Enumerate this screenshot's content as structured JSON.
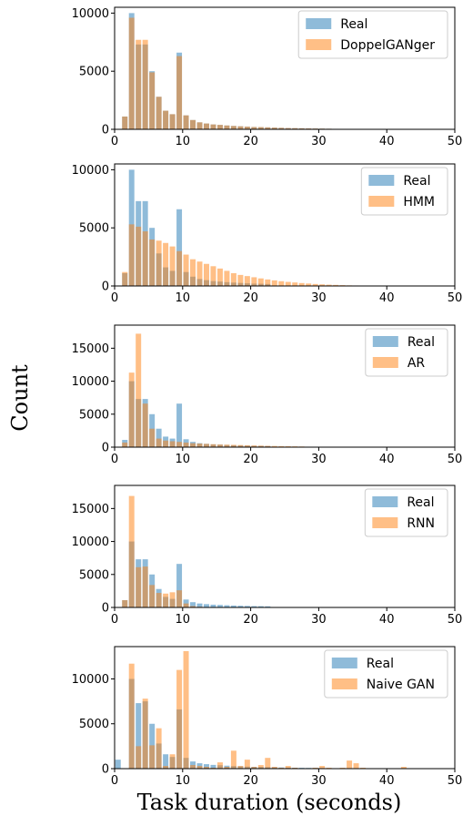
{
  "figure": {
    "ylabel": "Count",
    "xlabel": "Task duration (seconds)"
  },
  "colors": {
    "real": "#1f77b4",
    "generated": "#ff7f0e",
    "bar_opacity": 0.5
  },
  "chart_data": [
    {
      "type": "bar",
      "xlim": [
        0,
        50
      ],
      "ylim": [
        0,
        10500
      ],
      "xticks": [
        0,
        10,
        20,
        30,
        40,
        50
      ],
      "yticks": [
        0,
        5000,
        10000
      ],
      "legend_position": "top-right",
      "series": [
        {
          "name": "Real",
          "x": [
            0.5,
            1.5,
            2.5,
            3.5,
            4.5,
            5.5,
            6.5,
            7.5,
            8.5,
            9.5,
            10.5,
            11.5,
            12.5,
            13.5,
            14.5,
            15.5,
            16.5,
            17.5,
            18.5,
            19.5,
            20.5,
            21.5,
            22.5,
            23.5,
            24.5,
            25.5,
            26.5,
            27.5,
            28.5,
            29.5,
            30.5,
            31.5,
            32.5
          ],
          "values": [
            0,
            1100,
            10000,
            7300,
            7300,
            5000,
            2800,
            1600,
            1300,
            6600,
            1200,
            800,
            600,
            500,
            420,
            380,
            330,
            290,
            260,
            230,
            200,
            190,
            170,
            150,
            130,
            110,
            100,
            90,
            80,
            70,
            60,
            50,
            40
          ]
        },
        {
          "name": "DoppelGANger",
          "x": [
            0.5,
            1.5,
            2.5,
            3.5,
            4.5,
            5.5,
            6.5,
            7.5,
            8.5,
            9.5,
            10.5,
            11.5,
            12.5,
            13.5,
            14.5,
            15.5,
            16.5,
            17.5,
            18.5,
            19.5,
            20.5,
            21.5,
            22.5,
            23.5,
            24.5,
            25.5,
            26.5,
            27.5,
            28.5,
            29.5,
            30.5,
            31.5,
            32.5
          ],
          "values": [
            0,
            1100,
            9600,
            7700,
            7700,
            4900,
            2800,
            1600,
            1300,
            6300,
            1200,
            800,
            600,
            500,
            420,
            380,
            330,
            290,
            260,
            230,
            200,
            190,
            170,
            150,
            130,
            110,
            100,
            90,
            80,
            70,
            60,
            50,
            40
          ]
        }
      ]
    },
    {
      "type": "bar",
      "xlim": [
        0,
        50
      ],
      "ylim": [
        0,
        10500
      ],
      "xticks": [
        0,
        10,
        20,
        30,
        40,
        50
      ],
      "yticks": [
        0,
        5000,
        10000
      ],
      "legend_position": "top-right",
      "series": [
        {
          "name": "Real",
          "x": [
            0.5,
            1.5,
            2.5,
            3.5,
            4.5,
            5.5,
            6.5,
            7.5,
            8.5,
            9.5,
            10.5,
            11.5,
            12.5,
            13.5,
            14.5,
            15.5,
            16.5,
            17.5,
            18.5,
            19.5,
            20.5,
            21.5,
            22.5
          ],
          "values": [
            0,
            1100,
            10000,
            7300,
            7300,
            5000,
            2800,
            1600,
            1300,
            6600,
            1200,
            800,
            600,
            500,
            420,
            380,
            330,
            290,
            260,
            230,
            200,
            190,
            170
          ]
        },
        {
          "name": "HMM",
          "x": [
            0.5,
            1.5,
            2.5,
            3.5,
            4.5,
            5.5,
            6.5,
            7.5,
            8.5,
            9.5,
            10.5,
            11.5,
            12.5,
            13.5,
            14.5,
            15.5,
            16.5,
            17.5,
            18.5,
            19.5,
            20.5,
            21.5,
            22.5,
            23.5,
            24.5,
            25.5,
            26.5,
            27.5,
            28.5,
            29.5,
            30.5,
            31.5,
            32.5,
            33.5,
            34.5,
            35.5,
            36.5
          ],
          "values": [
            0,
            1200,
            5300,
            5100,
            4700,
            4000,
            3900,
            3700,
            3400,
            3000,
            2700,
            2300,
            2100,
            1900,
            1700,
            1500,
            1300,
            1100,
            950,
            850,
            750,
            650,
            560,
            480,
            410,
            350,
            300,
            250,
            210,
            170,
            140,
            110,
            90,
            70,
            50,
            40,
            30
          ]
        }
      ]
    },
    {
      "type": "bar",
      "xlim": [
        0,
        50
      ],
      "ylim": [
        0,
        18500
      ],
      "xticks": [
        0,
        10,
        20,
        30,
        40,
        50
      ],
      "yticks": [
        0,
        5000,
        10000,
        15000
      ],
      "legend_position": "top-right",
      "series": [
        {
          "name": "Real",
          "x": [
            0.5,
            1.5,
            2.5,
            3.5,
            4.5,
            5.5,
            6.5,
            7.5,
            8.5,
            9.5,
            10.5,
            11.5,
            12.5,
            13.5,
            14.5,
            15.5,
            16.5,
            17.5,
            18.5,
            19.5,
            20.5,
            21.5,
            22.5
          ],
          "values": [
            0,
            1100,
            10000,
            7300,
            7300,
            5000,
            2800,
            1600,
            1300,
            6600,
            1200,
            800,
            600,
            500,
            420,
            380,
            330,
            290,
            260,
            230,
            200,
            190,
            170
          ]
        },
        {
          "name": "AR",
          "x": [
            0.5,
            1.5,
            2.5,
            3.5,
            4.5,
            5.5,
            6.5,
            7.5,
            8.5,
            9.5,
            10.5,
            11.5,
            12.5,
            13.5,
            14.5,
            15.5,
            16.5,
            17.5,
            18.5,
            19.5,
            20.5,
            21.5,
            22.5,
            23.5,
            24.5,
            25.5,
            26.5,
            27.5
          ],
          "values": [
            0,
            700,
            11300,
            17200,
            6600,
            2800,
            1300,
            1000,
            900,
            800,
            700,
            600,
            550,
            500,
            450,
            400,
            380,
            350,
            320,
            290,
            260,
            230,
            200,
            180,
            160,
            140,
            120,
            100
          ]
        }
      ]
    },
    {
      "type": "bar",
      "xlim": [
        0,
        50
      ],
      "ylim": [
        0,
        18500
      ],
      "xticks": [
        0,
        10,
        20,
        30,
        40,
        50
      ],
      "yticks": [
        0,
        5000,
        10000,
        15000
      ],
      "legend_position": "top-right",
      "series": [
        {
          "name": "Real",
          "x": [
            0.5,
            1.5,
            2.5,
            3.5,
            4.5,
            5.5,
            6.5,
            7.5,
            8.5,
            9.5,
            10.5,
            11.5,
            12.5,
            13.5,
            14.5,
            15.5,
            16.5,
            17.5,
            18.5,
            19.5,
            20.5,
            21.5,
            22.5
          ],
          "values": [
            0,
            1100,
            10000,
            7300,
            7300,
            5000,
            2800,
            1600,
            1300,
            6600,
            1200,
            800,
            600,
            500,
            420,
            380,
            330,
            290,
            260,
            230,
            200,
            190,
            170
          ]
        },
        {
          "name": "RNN",
          "x": [
            0.5,
            1.5,
            2.5,
            3.5,
            4.5,
            5.5,
            6.5,
            7.5,
            8.5,
            9.5,
            10.5,
            11.5,
            12.5
          ],
          "values": [
            0,
            1100,
            16900,
            6100,
            6200,
            3400,
            2200,
            2100,
            2300,
            2600,
            600,
            200,
            100
          ]
        }
      ]
    },
    {
      "type": "bar",
      "xlim": [
        0,
        50
      ],
      "ylim": [
        0,
        13600
      ],
      "xticks": [
        0,
        10,
        20,
        30,
        40,
        50
      ],
      "yticks": [
        0,
        5000,
        10000
      ],
      "legend_position": "top-right",
      "series": [
        {
          "name": "Real",
          "x": [
            0.5,
            1.5,
            2.5,
            3.5,
            4.5,
            5.5,
            6.5,
            7.5,
            8.5,
            9.5,
            10.5,
            11.5,
            12.5,
            13.5,
            14.5,
            15.5,
            16.5,
            17.5,
            18.5,
            19.5,
            20.5,
            21.5,
            22.5,
            23.5,
            24.5,
            25.5,
            26.5,
            27.5,
            28.5,
            29.5,
            30.5,
            31.5,
            32.5
          ],
          "values": [
            1000,
            0,
            10000,
            7300,
            7500,
            5000,
            2800,
            1600,
            1300,
            6600,
            1200,
            800,
            600,
            500,
            420,
            380,
            330,
            290,
            260,
            230,
            200,
            190,
            170,
            150,
            130,
            110,
            100,
            90,
            80,
            70,
            60,
            50,
            40
          ]
        },
        {
          "name": "Naive GAN",
          "x": [
            1.5,
            2.5,
            3.5,
            4.5,
            5.5,
            6.5,
            7.5,
            8.5,
            9.5,
            10.5,
            11.5,
            12.5,
            13.5,
            14.5,
            15.5,
            16.5,
            17.5,
            18.5,
            19.5,
            20.5,
            21.5,
            22.5,
            23.5,
            24.5,
            25.5,
            26.5,
            27.5,
            28.5,
            29.5,
            30.5,
            31.5,
            32.5,
            33.5,
            34.5,
            35.5,
            36.5,
            37.5,
            38.5,
            39.5,
            40.5,
            41.5,
            42.5
          ],
          "values": [
            0,
            11700,
            2500,
            7800,
            2600,
            4500,
            300,
            1600,
            11000,
            13100,
            400,
            300,
            200,
            100,
            700,
            200,
            2000,
            300,
            1000,
            200,
            400,
            1200,
            200,
            100,
            300,
            100,
            50,
            50,
            100,
            300,
            100,
            50,
            100,
            900,
            600,
            100,
            0,
            0,
            0,
            0,
            0,
            200
          ]
        }
      ]
    }
  ]
}
